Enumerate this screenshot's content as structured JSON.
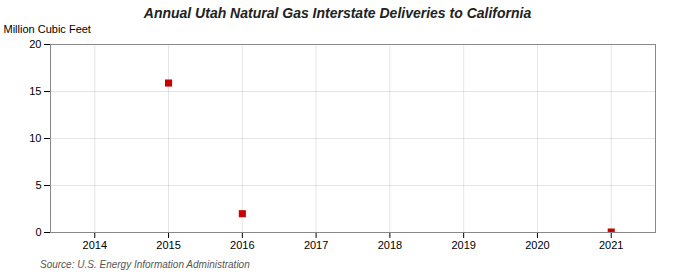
{
  "chart_data": {
    "type": "scatter",
    "title": "Annual Utah Natural Gas Interstate Deliveries to California",
    "ylabel": "Million Cubic Feet",
    "annotations": [
      "Source: U.S. Energy Information Administration"
    ],
    "x": [
      2015,
      2016,
      2021
    ],
    "values": [
      15.9,
      2.0,
      0.05
    ],
    "xlim": [
      2013.4,
      2021.6
    ],
    "xticks": [
      2014,
      2015,
      2016,
      2017,
      2018,
      2019,
      2020,
      2021
    ],
    "ylim": [
      0,
      20
    ],
    "yticks": [
      0,
      5,
      10,
      15,
      20
    ],
    "grid": true,
    "color": "#cc0000",
    "marker": "square"
  }
}
